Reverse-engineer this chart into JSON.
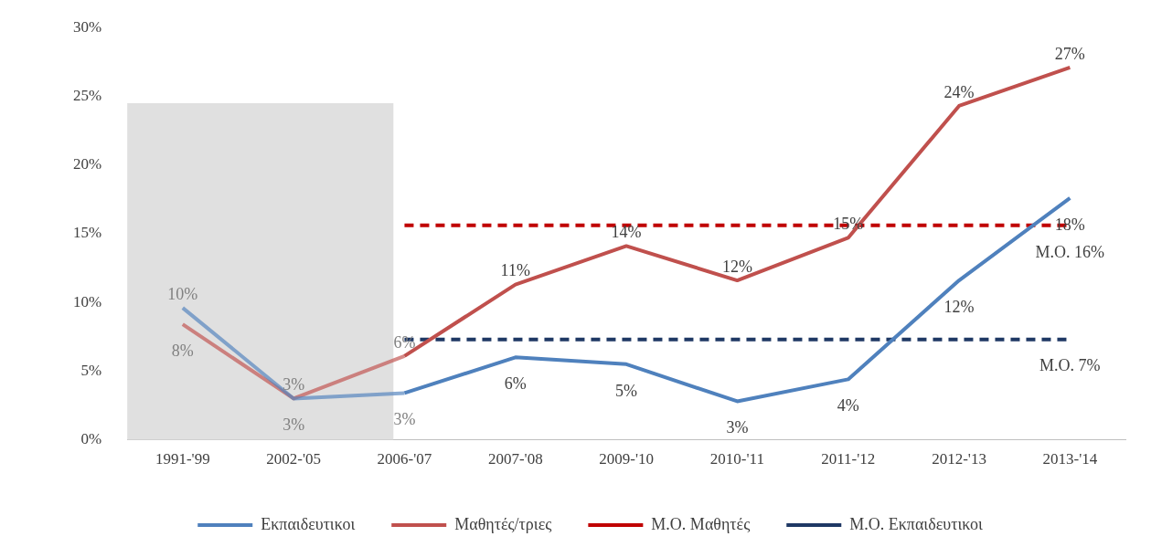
{
  "chart_data": {
    "type": "line",
    "categories": [
      "1991-'99",
      "2002-'05",
      "2006-'07",
      "2007-'08",
      "2009-'10",
      "2010-'11",
      "2011-'12",
      "2012-'13",
      "2013-'14"
    ],
    "series": [
      {
        "name": "Εκπαιδευτικοι",
        "color": "#4f81bd",
        "values": [
          9.6,
          3,
          3.4,
          6,
          5.5,
          2.8,
          4.4,
          11.6,
          17.6
        ],
        "value_labels": [
          "10%",
          "3%",
          "3%",
          "6%",
          "5%",
          "3%",
          "4%",
          "12%",
          "18%"
        ]
      },
      {
        "name": "Μαθητές/τριες",
        "color": "#c0504d",
        "values": [
          8.4,
          3,
          6.1,
          11.3,
          14.1,
          11.6,
          14.7,
          24.3,
          27.1
        ],
        "value_labels": [
          "8%",
          "3%",
          "6%",
          "11%",
          "14%",
          "12%",
          "15%",
          "24%",
          "27%"
        ]
      },
      {
        "name": "Μ.Ο. Μαθητές",
        "color": "#c00000",
        "line_style": "dashed",
        "values": [
          null,
          null,
          15.6,
          15.6,
          15.6,
          15.6,
          15.6,
          15.6,
          15.6
        ],
        "value_labels": [
          null,
          null,
          null,
          null,
          null,
          null,
          null,
          null,
          "Μ.Ο. 16%"
        ]
      },
      {
        "name": "Μ.Ο. Εκπαιδευτικοι",
        "color": "#1f3864",
        "line_style": "dashed",
        "values": [
          null,
          null,
          7.3,
          7.3,
          7.3,
          7.3,
          7.3,
          7.3,
          7.3
        ],
        "value_labels": [
          null,
          null,
          null,
          null,
          null,
          null,
          null,
          null,
          "Μ.Ο. 7%"
        ]
      }
    ],
    "bands": [
      {
        "axis": "x",
        "from": "1991-'99",
        "to": "2006-'07",
        "color": "#e0e0e0"
      }
    ],
    "ylim": [
      0,
      30
    ],
    "yticks": [
      {
        "value": 0,
        "label": "0%"
      },
      {
        "value": 5,
        "label": "5%"
      },
      {
        "value": 10,
        "label": "10%"
      },
      {
        "value": 15,
        "label": "15%"
      },
      {
        "value": 20,
        "label": "20%"
      },
      {
        "value": 25,
        "label": "25%"
      },
      {
        "value": 30,
        "label": "30%"
      }
    ],
    "grid": false,
    "legend": "bottom",
    "marker": "none",
    "line_style": "solid"
  }
}
